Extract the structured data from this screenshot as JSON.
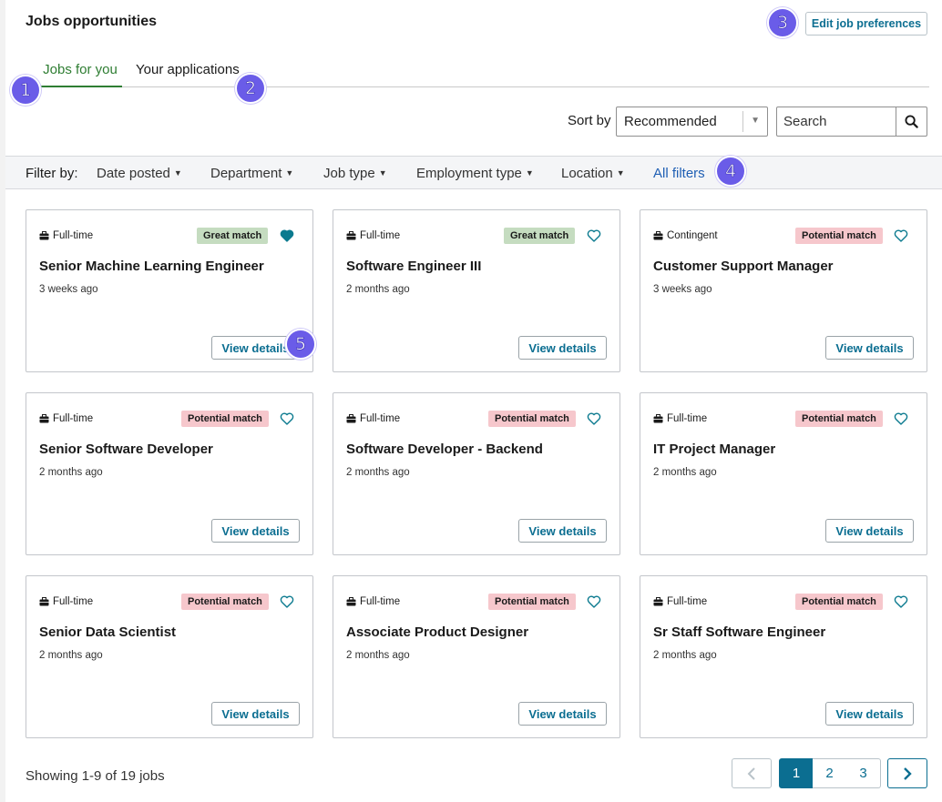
{
  "header": {
    "title": "Jobs opportunities",
    "edit_preferences_label": "Edit job preferences"
  },
  "tabs": [
    {
      "label": "Jobs for you",
      "active": true
    },
    {
      "label": "Your applications",
      "active": false
    }
  ],
  "sort": {
    "label": "Sort by",
    "selected": "Recommended"
  },
  "search": {
    "placeholder": "Search"
  },
  "filters": {
    "label": "Filter by:",
    "items": [
      "Date posted",
      "Department",
      "Job type",
      "Employment type",
      "Location"
    ],
    "all_filters_label": "All filters"
  },
  "annotations": [
    "1",
    "2",
    "3",
    "4",
    "5"
  ],
  "jobs": [
    {
      "type": "Full-time",
      "match": "Great match",
      "match_kind": "great",
      "favorited": true,
      "title": "Senior Machine Learning Engineer",
      "posted": "3 weeks ago",
      "button": "View details"
    },
    {
      "type": "Full-time",
      "match": "Great match",
      "match_kind": "great",
      "favorited": false,
      "title": "Software Engineer III",
      "posted": "2 months ago",
      "button": "View details"
    },
    {
      "type": "Contingent",
      "match": "Potential match",
      "match_kind": "potential",
      "favorited": false,
      "title": "Customer Support Manager",
      "posted": "3 weeks ago",
      "button": "View details"
    },
    {
      "type": "Full-time",
      "match": "Potential match",
      "match_kind": "potential",
      "favorited": false,
      "title": "Senior Software Developer",
      "posted": "2 months ago",
      "button": "View details"
    },
    {
      "type": "Full-time",
      "match": "Potential match",
      "match_kind": "potential",
      "favorited": false,
      "title": "Software Developer - Backend",
      "posted": "2 months ago",
      "button": "View details"
    },
    {
      "type": "Full-time",
      "match": "Potential match",
      "match_kind": "potential",
      "favorited": false,
      "title": "IT Project Manager",
      "posted": "2 months ago",
      "button": "View details"
    },
    {
      "type": "Full-time",
      "match": "Potential match",
      "match_kind": "potential",
      "favorited": false,
      "title": "Senior Data Scientist",
      "posted": "2 months ago",
      "button": "View details"
    },
    {
      "type": "Full-time",
      "match": "Potential match",
      "match_kind": "potential",
      "favorited": false,
      "title": "Associate Product Designer",
      "posted": "2 months ago",
      "button": "View details"
    },
    {
      "type": "Full-time",
      "match": "Potential match",
      "match_kind": "potential",
      "favorited": false,
      "title": "Sr Staff Software Engineer",
      "posted": "2 months ago",
      "button": "View details"
    }
  ],
  "footer": {
    "showing": "Showing 1-9 of 19 jobs",
    "pages": [
      "1",
      "2",
      "3"
    ],
    "current_page": "1"
  },
  "colors": {
    "accent": "#0b6e91",
    "tab_active": "#2e7d32",
    "great_match_bg": "#c5dcc0",
    "potential_match_bg": "#f6c7cc",
    "annotation": "#6a5ce8",
    "link": "#1f5fb4"
  },
  "icons": {
    "employment_type": "briefcase-icon",
    "favorite": "heart-icon",
    "search": "search-icon",
    "sort_caret": "caret-down-icon",
    "prev": "chevron-left-icon",
    "next": "chevron-right-icon"
  }
}
